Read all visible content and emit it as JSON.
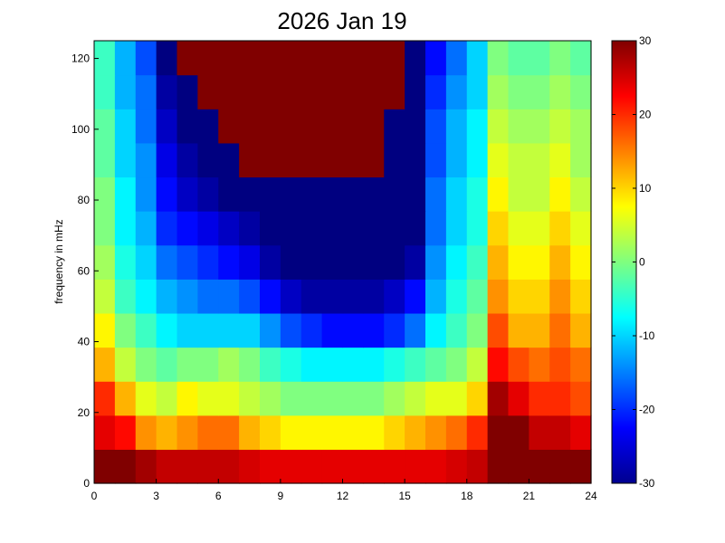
{
  "chart_data": {
    "type": "heatmap",
    "title": "2026 Jan 19",
    "xlabel": "",
    "ylabel": "frequency in mHz",
    "xlim": [
      0,
      24
    ],
    "ylim": [
      0,
      125
    ],
    "x_ticks": [
      0,
      3,
      6,
      9,
      12,
      15,
      18,
      21,
      24
    ],
    "y_ticks": [
      0,
      20,
      40,
      60,
      80,
      100,
      120
    ],
    "colorbar": {
      "range": [
        -30,
        30
      ],
      "ticks": [
        -30,
        -20,
        -10,
        0,
        10,
        20,
        30
      ],
      "colormap": "jet"
    },
    "x_bins": 24,
    "y_bins": 13,
    "grid": [
      [
        30,
        30,
        28,
        26,
        26,
        26,
        26,
        25,
        24,
        24,
        24,
        24,
        24,
        24,
        24,
        24,
        24,
        25,
        26,
        30,
        30,
        30,
        30,
        30
      ],
      [
        24,
        22,
        14,
        12,
        14,
        16,
        16,
        12,
        10,
        8,
        8,
        8,
        8,
        8,
        10,
        12,
        14,
        16,
        20,
        30,
        30,
        26,
        26,
        24
      ],
      [
        20,
        12,
        6,
        4,
        8,
        6,
        6,
        4,
        2,
        0,
        0,
        0,
        0,
        0,
        2,
        4,
        6,
        6,
        10,
        28,
        24,
        20,
        20,
        18
      ],
      [
        12,
        4,
        0,
        -2,
        0,
        0,
        2,
        0,
        -4,
        -6,
        -8,
        -8,
        -8,
        -8,
        -6,
        -4,
        -2,
        0,
        4,
        22,
        18,
        16,
        18,
        16
      ],
      [
        8,
        0,
        -4,
        -8,
        -10,
        -10,
        -10,
        -10,
        -14,
        -18,
        -20,
        -22,
        -22,
        -22,
        -20,
        -16,
        -8,
        -4,
        0,
        18,
        12,
        12,
        16,
        12
      ],
      [
        4,
        -4,
        -8,
        -12,
        -14,
        -16,
        -16,
        -18,
        -22,
        -26,
        -28,
        -28,
        -28,
        -28,
        -26,
        -22,
        -12,
        -6,
        -2,
        14,
        10,
        10,
        14,
        10
      ],
      [
        2,
        -6,
        -10,
        -16,
        -18,
        -20,
        -22,
        -24,
        -28,
        -30,
        -30,
        -30,
        -30,
        -30,
        -30,
        -28,
        -14,
        -8,
        -4,
        12,
        8,
        8,
        12,
        8
      ],
      [
        0,
        -8,
        -12,
        -20,
        -22,
        -24,
        -26,
        -28,
        -30,
        -30,
        -30,
        -30,
        -30,
        -30,
        -30,
        -30,
        -16,
        -10,
        -6,
        10,
        6,
        6,
        10,
        6
      ],
      [
        0,
        -8,
        -14,
        -22,
        -26,
        -28,
        -30,
        -30,
        -30,
        -30,
        -30,
        -30,
        -30,
        -30,
        -30,
        -30,
        -16,
        -10,
        -6,
        8,
        4,
        4,
        8,
        4
      ],
      [
        -2,
        -10,
        -14,
        -24,
        -28,
        -30,
        -30,
        30,
        30,
        30,
        30,
        30,
        30,
        30,
        -30,
        -30,
        -18,
        -12,
        -8,
        6,
        4,
        4,
        6,
        2
      ],
      [
        -2,
        -10,
        -16,
        -26,
        -30,
        -30,
        30,
        30,
        30,
        30,
        30,
        30,
        30,
        30,
        -30,
        -30,
        -18,
        -12,
        -8,
        4,
        2,
        2,
        4,
        2
      ],
      [
        -4,
        -12,
        -16,
        -28,
        -30,
        30,
        30,
        30,
        30,
        30,
        30,
        30,
        30,
        30,
        30,
        -30,
        -20,
        -14,
        -10,
        2,
        0,
        0,
        2,
        0
      ],
      [
        -4,
        -12,
        -18,
        -30,
        30,
        30,
        30,
        30,
        30,
        30,
        30,
        30,
        30,
        30,
        30,
        -30,
        -22,
        -16,
        -10,
        0,
        -2,
        -2,
        0,
        -2
      ]
    ]
  }
}
